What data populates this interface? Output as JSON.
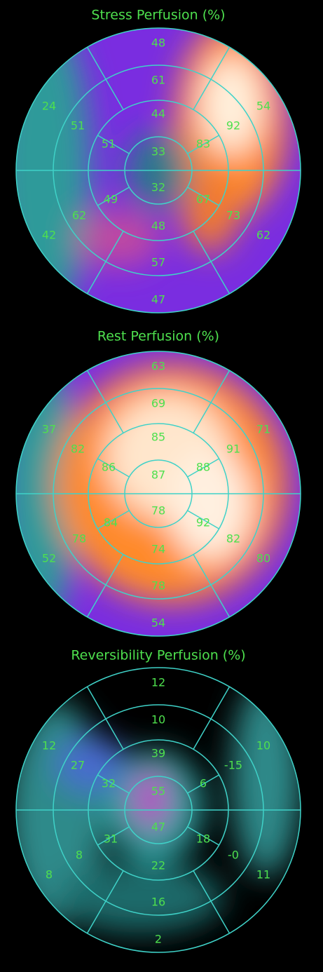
{
  "panels": [
    {
      "title": "Stress Perfusion (%)",
      "segments": [
        "48",
        "61",
        "44",
        "33",
        "32",
        "48",
        "57",
        "47",
        "24",
        "51",
        "51",
        "49",
        "62",
        "42",
        "54",
        "92",
        "83",
        "67",
        "73",
        "62"
      ]
    },
    {
      "title": "Rest Perfusion (%)",
      "segments": [
        "63",
        "69",
        "85",
        "87",
        "78",
        "74",
        "78",
        "54",
        "37",
        "82",
        "86",
        "84",
        "78",
        "52",
        "71",
        "91",
        "88",
        "92",
        "82",
        "80"
      ]
    },
    {
      "title": "Reversibility Perfusion (%)",
      "segments": [
        "12",
        "10",
        "39",
        "55",
        "47",
        "22",
        "16",
        "2",
        "12",
        "27",
        "32",
        "31",
        "8",
        "8",
        "10",
        "-15",
        "6",
        "18",
        "-0",
        "11"
      ]
    }
  ]
}
